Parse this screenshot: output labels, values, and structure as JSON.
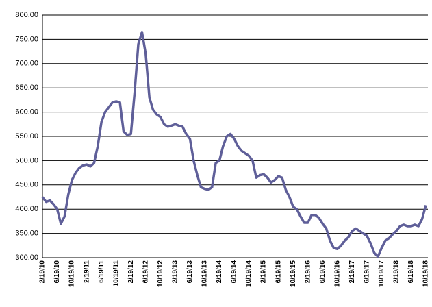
{
  "chart_data": {
    "type": "line",
    "categories": [
      "2/19/10",
      null,
      null,
      null,
      "6/19/10",
      null,
      null,
      null,
      "10/19/10",
      null,
      null,
      null,
      "2/19/11",
      null,
      null,
      null,
      "6/19/11",
      null,
      null,
      null,
      "10/19/11",
      null,
      null,
      null,
      "2/19/12",
      null,
      null,
      null,
      "6/19/12",
      null,
      null,
      null,
      "10/19/12",
      null,
      null,
      null,
      "2/19/13",
      null,
      null,
      null,
      "6/19/13",
      null,
      null,
      null,
      "10/19/13",
      null,
      null,
      null,
      "2/19/14",
      null,
      null,
      null,
      "6/19/14",
      null,
      null,
      null,
      "10/19/14",
      null,
      null,
      null,
      "2/19/15",
      null,
      null,
      null,
      "6/19/15",
      null,
      null,
      null,
      "10/19/15",
      null,
      null,
      null,
      "2/19/16",
      null,
      null,
      null,
      "6/19/16",
      null,
      null,
      null,
      "10/19/16",
      null,
      null,
      null,
      "2/19/17",
      null,
      null,
      null,
      "6/19/17",
      null,
      null,
      null,
      "10/19/17",
      null,
      null,
      null,
      "2/19/18",
      null,
      null,
      null,
      "6/19/18",
      null,
      null,
      null,
      "10/19/18"
    ],
    "values": [
      425,
      415,
      418,
      410,
      400,
      370,
      385,
      430,
      460,
      475,
      485,
      490,
      492,
      488,
      495,
      530,
      580,
      600,
      610,
      620,
      622,
      620,
      560,
      553,
      555,
      640,
      740,
      765,
      720,
      630,
      605,
      595,
      590,
      575,
      570,
      572,
      575,
      572,
      570,
      555,
      545,
      500,
      470,
      445,
      442,
      440,
      445,
      495,
      500,
      530,
      550,
      555,
      545,
      530,
      520,
      515,
      510,
      500,
      465,
      470,
      472,
      465,
      455,
      460,
      468,
      465,
      440,
      425,
      405,
      400,
      385,
      372,
      372,
      388,
      388,
      382,
      370,
      360,
      335,
      320,
      318,
      325,
      335,
      342,
      355,
      360,
      355,
      350,
      345,
      330,
      310,
      302,
      320,
      335,
      340,
      348,
      355,
      365,
      368,
      365,
      365,
      368,
      365,
      380,
      408
    ],
    "color": "#5f5f99",
    "ylim": [
      300,
      800
    ],
    "yticks": [
      {
        "value": 300,
        "label": "300.00"
      },
      {
        "value": 350,
        "label": "350.00"
      },
      {
        "value": 400,
        "label": "400.00"
      },
      {
        "value": 450,
        "label": "450.00"
      },
      {
        "value": 500,
        "label": "500.00"
      },
      {
        "value": 550,
        "label": "550.00"
      },
      {
        "value": 600,
        "label": "600.00"
      },
      {
        "value": 650,
        "label": "650.00"
      },
      {
        "value": 700,
        "label": "700.00"
      },
      {
        "value": 750,
        "label": "750.00"
      },
      {
        "value": 800,
        "label": "800.00"
      }
    ],
    "grid": true
  }
}
